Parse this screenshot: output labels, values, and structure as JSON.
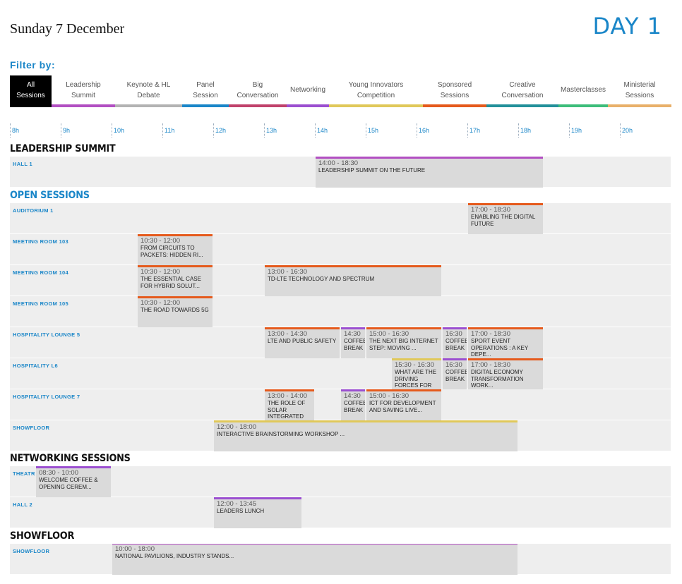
{
  "header": {
    "date": "Sunday 7 December",
    "day": "DAY 1"
  },
  "filter_label": "Filter by:",
  "colors": {
    "leadership": "#b24fc2",
    "keynote": "#b3b3b3",
    "panel": "#1a86c8",
    "big": "#c0426b",
    "networking": "#9b4fd0",
    "young": "#e0c85a",
    "sponsored": "#e55a1c",
    "creative": "#23909a",
    "masterclasses": "#3dbd7a",
    "ministerial": "#e8b06a"
  },
  "filters": [
    {
      "id": "all",
      "label": "All Sessions",
      "color": "#000000",
      "active": true
    },
    {
      "id": "leadership",
      "label": "Leadership Summit",
      "color": "#b24fc2"
    },
    {
      "id": "keynote",
      "label": "Keynote & HL Debate",
      "color": "#b3b3b3"
    },
    {
      "id": "panel",
      "label": "Panel Session",
      "color": "#1a86c8"
    },
    {
      "id": "big",
      "label": "Big Conversation",
      "color": "#c0426b"
    },
    {
      "id": "networking",
      "label": "Networking",
      "color": "#9b4fd0"
    },
    {
      "id": "young",
      "label": "Young Innovators Competition",
      "color": "#e0c85a"
    },
    {
      "id": "sponsored",
      "label": "Sponsored Sessions",
      "color": "#e55a1c"
    },
    {
      "id": "creative",
      "label": "Creative Conversation",
      "color": "#23909a"
    },
    {
      "id": "masterclasses",
      "label": "Masterclasses",
      "color": "#3dbd7a"
    },
    {
      "id": "ministerial",
      "label": "Ministerial Sessions",
      "color": "#e8b06a"
    }
  ],
  "hours": [
    "8h",
    "9h",
    "10h",
    "11h",
    "12h",
    "13h",
    "14h",
    "15h",
    "16h",
    "17h",
    "18h",
    "19h",
    "20h"
  ],
  "sections": [
    {
      "title": "LEADERSHIP SUMMIT",
      "style": "dark",
      "rows": [
        {
          "label": "HALL 1",
          "events": [
            {
              "start": "14:00",
              "end": "18:30",
              "time": "14:00 - 18:30",
              "title": "LEADERSHIP SUMMIT ON THE FUTURE",
              "cat": "leadership"
            }
          ]
        }
      ]
    },
    {
      "title": "OPEN SESSIONS",
      "style": "blue",
      "rows": [
        {
          "label": "AUDITORIUM 1",
          "events": [
            {
              "start": "17:00",
              "end": "18:30",
              "time": "17:00 - 18:30",
              "title": "ENABLING THE DIGITAL FUTURE",
              "cat": "sponsored"
            }
          ]
        },
        {
          "label": "MEETING ROOM 103",
          "events": [
            {
              "start": "10:30",
              "end": "12:00",
              "time": "10:30 - 12:00",
              "title": "FROM CIRCUITS TO PACKETS: HIDDEN RI...",
              "cat": "sponsored"
            }
          ]
        },
        {
          "label": "MEETING ROOM 104",
          "events": [
            {
              "start": "10:30",
              "end": "12:00",
              "time": "10:30 - 12:00",
              "title": "THE ESSENTIAL CASE FOR HYBRID SOLUT...",
              "cat": "sponsored"
            },
            {
              "start": "13:00",
              "end": "16:30",
              "time": "13:00 - 16:30",
              "title": "TD-LTE TECHNOLOGY AND SPECTRUM",
              "cat": "sponsored"
            }
          ]
        },
        {
          "label": "MEETING ROOM 105",
          "events": [
            {
              "start": "10:30",
              "end": "12:00",
              "time": "10:30 - 12:00",
              "title": "THE ROAD TOWARDS 5G",
              "cat": "sponsored"
            }
          ]
        },
        {
          "label": "HOSPITALITY LOUNGE 5",
          "events": [
            {
              "start": "13:00",
              "end": "14:30",
              "time": "13:00 - 14:30",
              "title": "LTE AND PUBLIC SAFETY",
              "cat": "sponsored"
            },
            {
              "start": "14:30",
              "end": "15:00",
              "time": "14:30",
              "title": "COFFEE BREAK",
              "cat": "networking"
            },
            {
              "start": "15:00",
              "end": "16:30",
              "time": "15:00 - 16:30",
              "title": "THE NEXT BIG INTERNET STEP: MOVING ...",
              "cat": "sponsored"
            },
            {
              "start": "16:30",
              "end": "17:00",
              "time": "16:30",
              "title": "COFFEE BREAK",
              "cat": "networking"
            },
            {
              "start": "17:00",
              "end": "18:30",
              "time": "17:00 - 18:30",
              "title": "SPORT EVENT OPERATIONS : A KEY DEPE...",
              "cat": "sponsored"
            }
          ]
        },
        {
          "label": "HOSPITALITY L6",
          "events": [
            {
              "start": "15:30",
              "end": "16:30",
              "time": "15:30 - 16:30",
              "title": "WHAT ARE THE DRIVING FORCES FOR",
              "cat": "young"
            },
            {
              "start": "16:30",
              "end": "17:00",
              "time": "16:30",
              "title": "COFFEE BREAK",
              "cat": "networking"
            },
            {
              "start": "17:00",
              "end": "18:30",
              "time": "17:00 - 18:30",
              "title": "DIGITAL ECONOMY TRANSFORMATION WORK...",
              "cat": "sponsored"
            }
          ]
        },
        {
          "label": "HOSPITALITY LOUNGE 7",
          "events": [
            {
              "start": "13:00",
              "end": "14:00",
              "time": "13:00 - 14:00",
              "title": "THE ROLE OF SOLAR INTEGRATED",
              "cat": "sponsored"
            },
            {
              "start": "14:30",
              "end": "15:00",
              "time": "14:30",
              "title": "COFFEE BREAK",
              "cat": "networking"
            },
            {
              "start": "15:00",
              "end": "16:30",
              "time": "15:00 - 16:30",
              "title": "ICT FOR DEVELOPMENT AND SAVING LIVE...",
              "cat": "sponsored"
            }
          ]
        },
        {
          "label": "SHOWFLOOR",
          "events": [
            {
              "start": "12:00",
              "end": "18:00",
              "time": "12:00 - 18:00",
              "title": "INTERACTIVE BRAINSTORMING WORKSHOP ...",
              "cat": "young"
            }
          ]
        }
      ]
    },
    {
      "title": "NETWORKING SESSIONS",
      "style": "dark",
      "rows": [
        {
          "label": "THEATR",
          "events": [
            {
              "start": "8:30",
              "end": "10:00",
              "time": "08:30 - 10:00",
              "title": "WELCOME COFFEE & OPENING CEREM...",
              "cat": "networking"
            }
          ]
        },
        {
          "label": "HALL 2",
          "events": [
            {
              "start": "12:00",
              "end": "13:45",
              "time": "12:00 - 13:45",
              "title": "LEADERS LUNCH",
              "cat": "networking"
            }
          ]
        }
      ]
    },
    {
      "title": "SHOWFLOOR",
      "style": "dark",
      "rows": [
        {
          "label": "SHOWFLOOR",
          "events": [
            {
              "start": "10:00",
              "end": "18:00",
              "time": "10:00 - 18:00",
              "title": "NATIONAL PAVILIONS, INDUSTRY STANDS...",
              "cat": "showfloor"
            }
          ]
        }
      ]
    }
  ]
}
